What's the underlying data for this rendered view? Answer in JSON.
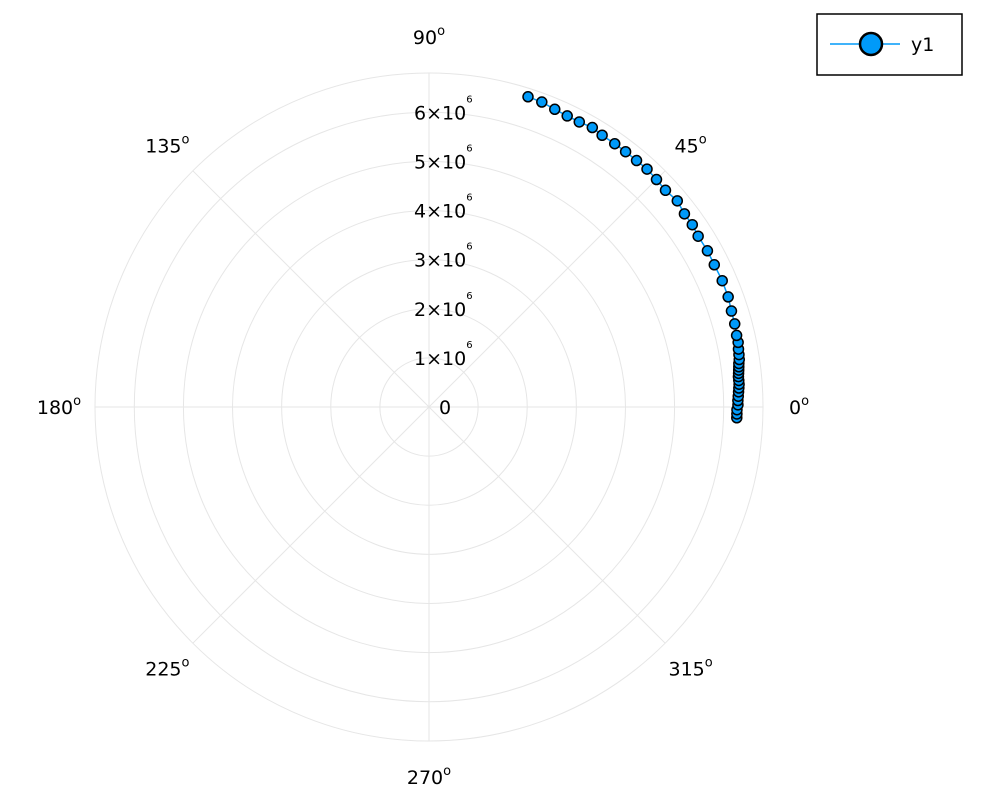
{
  "chart_data": {
    "type": "scatter",
    "projection": "polar",
    "grid": true,
    "legend_position": "top-right",
    "angle_unit": "degrees",
    "angle_ticks": [
      {
        "value": 0,
        "label": "0",
        "sup": "o"
      },
      {
        "value": 45,
        "label": "45",
        "sup": "o"
      },
      {
        "value": 90,
        "label": "90",
        "sup": "o"
      },
      {
        "value": 135,
        "label": "135",
        "sup": "o"
      },
      {
        "value": 180,
        "label": "180",
        "sup": "o"
      },
      {
        "value": 225,
        "label": "225",
        "sup": "o"
      },
      {
        "value": 270,
        "label": "270",
        "sup": "o"
      },
      {
        "value": 315,
        "label": "315",
        "sup": "o"
      }
    ],
    "radial_ticks": [
      {
        "value": 0,
        "label": "0",
        "sup": ""
      },
      {
        "value": 1000000,
        "label": "1×10",
        "sup": "6"
      },
      {
        "value": 2000000,
        "label": "2×10",
        "sup": "6"
      },
      {
        "value": 3000000,
        "label": "3×10",
        "sup": "6"
      },
      {
        "value": 4000000,
        "label": "4×10",
        "sup": "6"
      },
      {
        "value": 5000000,
        "label": "5×10",
        "sup": "6"
      },
      {
        "value": 6000000,
        "label": "6×10",
        "sup": "6"
      }
    ],
    "r_max": 6800000,
    "series": [
      {
        "name": "y1",
        "color": "#009af9",
        "marker": "circle",
        "marker_stroke": "#000000",
        "line": true,
        "theta": [
          -2.0,
          -1.3,
          -0.5,
          0.4,
          1.2,
          2.0,
          2.8,
          3.5,
          4.2,
          4.9,
          5.6,
          6.2,
          6.8,
          7.4,
          8.0,
          8.7,
          9.6,
          10.6,
          11.8,
          13.1,
          15.2,
          17.6,
          20.2,
          23.3,
          26.5,
          29.3,
          32.4,
          34.7,
          37.1,
          39.7,
          42.5,
          45.0,
          47.5,
          49.9,
          52.4,
          54.8,
          57.5,
          59.7,
          62.2,
          64.6,
          67.1,
          69.7,
          72.3
        ],
        "r": [
          6270000,
          6270000,
          6270000,
          6290000,
          6290000,
          6300000,
          6310000,
          6320000,
          6330000,
          6330000,
          6330000,
          6340000,
          6350000,
          6360000,
          6370000,
          6390000,
          6400000,
          6410000,
          6430000,
          6430000,
          6450000,
          6460000,
          6490000,
          6500000,
          6490000,
          6500000,
          6490000,
          6520000,
          6520000,
          6570000,
          6530000,
          6550000,
          6570000,
          6560000,
          6560000,
          6560000,
          6560000,
          6590000,
          6560000,
          6560000,
          6580000,
          6620000,
          6630000
        ]
      }
    ]
  }
}
